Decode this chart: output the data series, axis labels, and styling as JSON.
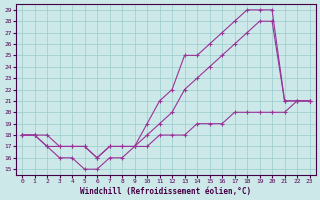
{
  "xlabel": "Windchill (Refroidissement éolien,°C)",
  "xlim": [
    -0.5,
    23.5
  ],
  "ylim": [
    14.5,
    29.5
  ],
  "xticks": [
    0,
    1,
    2,
    3,
    4,
    5,
    6,
    7,
    8,
    9,
    10,
    11,
    12,
    13,
    14,
    15,
    16,
    17,
    18,
    19,
    20,
    21,
    22,
    23
  ],
  "yticks": [
    15,
    16,
    17,
    18,
    19,
    20,
    21,
    22,
    23,
    24,
    25,
    26,
    27,
    28,
    29
  ],
  "bg_color": "#cce8e8",
  "line_color": "#993399",
  "grid_color": "#99cccc",
  "lines": [
    {
      "x": [
        0,
        1,
        2,
        3,
        4,
        5,
        6,
        7,
        8,
        9,
        10,
        11,
        12,
        13,
        14,
        15,
        16,
        17,
        18,
        19,
        20,
        21,
        22,
        23
      ],
      "y": [
        18,
        18,
        17,
        16,
        16,
        15,
        15,
        16,
        16,
        17,
        19,
        21,
        22,
        25,
        25,
        26,
        27,
        28,
        29,
        29,
        29,
        21,
        21,
        21
      ]
    },
    {
      "x": [
        0,
        1,
        2,
        3,
        4,
        5,
        6,
        7,
        8,
        9,
        10,
        11,
        12,
        13,
        14,
        15,
        16,
        17,
        18,
        19,
        20,
        21,
        22,
        23
      ],
      "y": [
        18,
        18,
        17,
        17,
        17,
        17,
        16,
        17,
        17,
        17,
        18,
        19,
        20,
        22,
        23,
        24,
        25,
        26,
        27,
        28,
        28,
        21,
        21,
        21
      ]
    },
    {
      "x": [
        0,
        1,
        2,
        3,
        4,
        5,
        6,
        7,
        8,
        9,
        10,
        11,
        12,
        13,
        14,
        15,
        16,
        17,
        18,
        19,
        20,
        21,
        22,
        23
      ],
      "y": [
        18,
        18,
        18,
        17,
        17,
        17,
        16,
        17,
        17,
        17,
        17,
        18,
        18,
        18,
        19,
        19,
        19,
        20,
        20,
        20,
        20,
        20,
        21,
        21
      ]
    }
  ]
}
